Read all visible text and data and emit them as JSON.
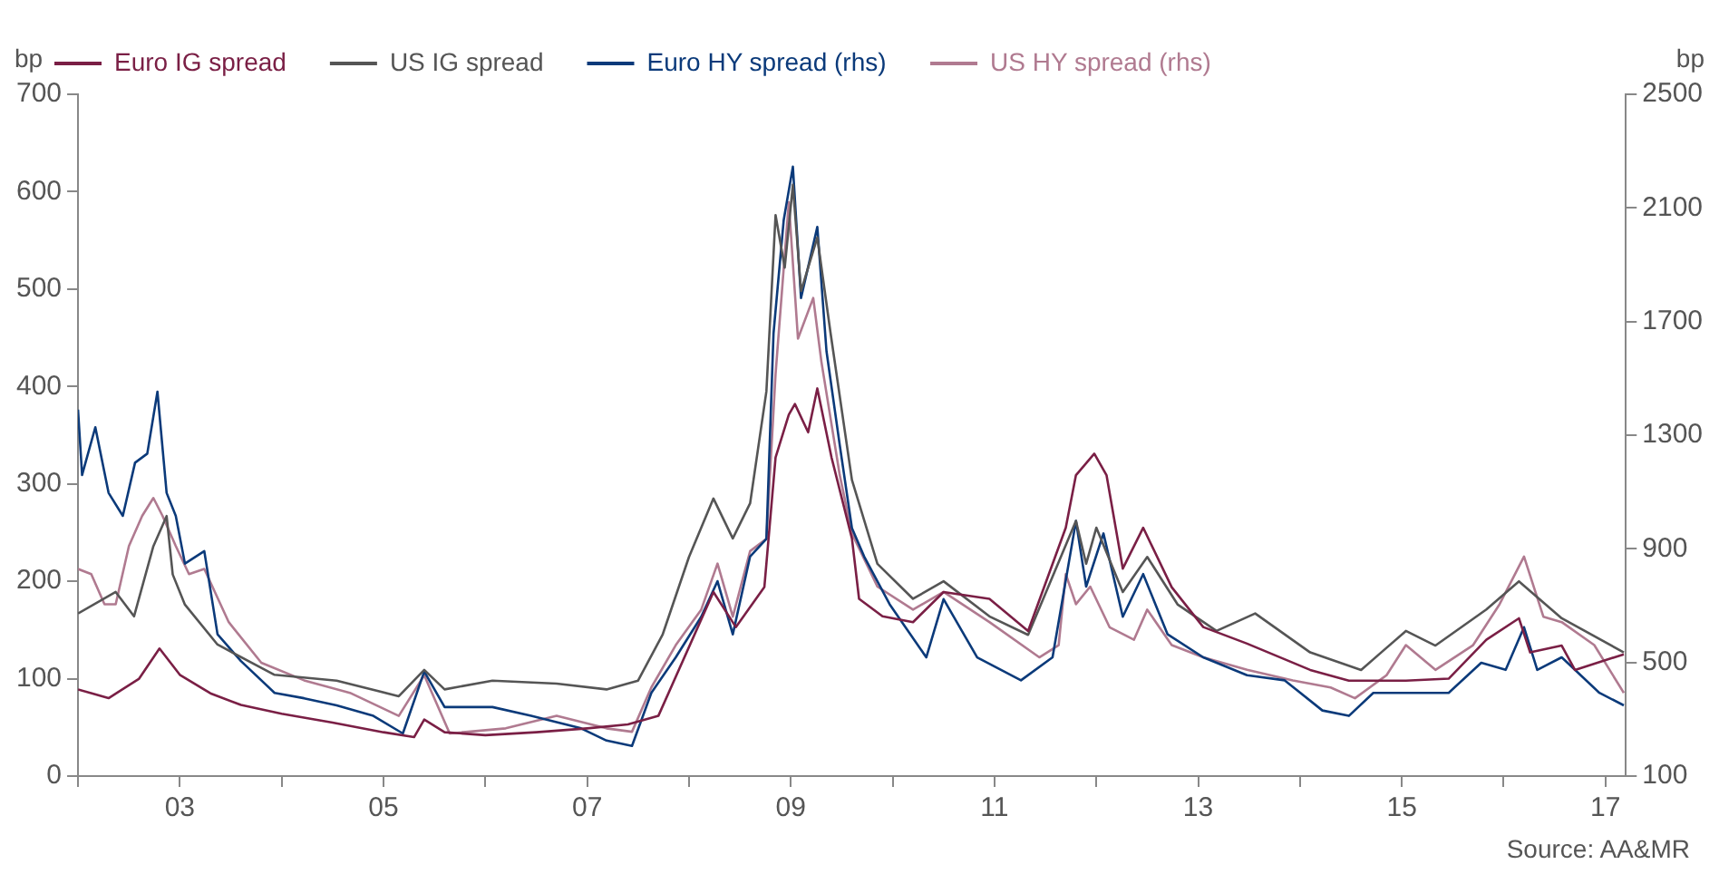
{
  "chart_data": {
    "type": "line",
    "ylabel": "bp",
    "y2label": "bp",
    "legend": "top left",
    "grid": false,
    "marker": "none",
    "line_style": "solid",
    "xlim": [
      2002,
      2017.2
    ],
    "xticks": [
      {
        "value": 2002,
        "label": null
      },
      {
        "value": 2003,
        "label": "03"
      },
      {
        "value": 2004,
        "label": null
      },
      {
        "value": 2005,
        "label": "05"
      },
      {
        "value": 2006,
        "label": null
      },
      {
        "value": 2007,
        "label": "07"
      },
      {
        "value": 2008,
        "label": null
      },
      {
        "value": 2009,
        "label": "09"
      },
      {
        "value": 2010,
        "label": null
      },
      {
        "value": 2011,
        "label": "11"
      },
      {
        "value": 2012,
        "label": null
      },
      {
        "value": 2013,
        "label": "13"
      },
      {
        "value": 2014,
        "label": null
      },
      {
        "value": 2015,
        "label": "15"
      },
      {
        "value": 2016,
        "label": null
      },
      {
        "value": 2017,
        "label": "17"
      }
    ],
    "ylim": [
      0,
      700
    ],
    "yticks": [
      0,
      100,
      200,
      300,
      400,
      500,
      600,
      700
    ],
    "y2lim": [
      100,
      2500
    ],
    "y2ticks": [
      100,
      500,
      900,
      1300,
      1700,
      2100,
      2500
    ],
    "annotations": [
      "Source: AA&MR"
    ],
    "series": [
      {
        "name": "Euro IG spread",
        "color": "#7a1f45",
        "x": [
          2002.0,
          2002.3,
          2002.6,
          2002.8,
          2003.0,
          2003.3,
          2003.6,
          2004.0,
          2004.5,
          2005.0,
          2005.3,
          2005.4,
          2005.6,
          2006.0,
          2006.5,
          2007.0,
          2007.4,
          2007.7,
          2008.24,
          2008.46,
          2008.74,
          2008.85,
          2008.98,
          2009.04,
          2009.17,
          2009.26,
          2009.4,
          2009.6,
          2009.67,
          2009.9,
          2010.2,
          2010.5,
          2010.95,
          2011.33,
          2011.7,
          2011.8,
          2011.98,
          2012.1,
          2012.26,
          2012.46,
          2012.74,
          2013.05,
          2013.48,
          2014.1,
          2014.48,
          2015.04,
          2015.46,
          2015.83,
          2016.15,
          2016.26,
          2016.57,
          2016.7,
          2017.18
        ],
        "values": [
          89,
          80,
          100,
          131,
          104,
          85,
          73,
          64,
          55,
          45,
          40,
          58,
          45,
          42,
          45,
          49,
          53,
          62,
          189,
          153,
          194,
          327,
          371,
          382,
          353,
          398,
          327,
          244,
          182,
          164,
          158,
          189,
          182,
          149,
          255,
          309,
          331,
          309,
          213,
          255,
          194,
          153,
          136,
          109,
          98,
          98,
          100,
          140,
          162,
          127,
          134,
          109,
          125
        ]
      },
      {
        "name": "US IG spread",
        "color": "#555555",
        "x": [
          2002.0,
          2002.37,
          2002.55,
          2002.74,
          2002.87,
          2002.93,
          2003.05,
          2003.37,
          2003.93,
          2004.54,
          2005.15,
          2005.4,
          2005.6,
          2006.07,
          2006.7,
          2007.19,
          2007.5,
          2007.74,
          2008.0,
          2008.24,
          2008.43,
          2008.6,
          2008.76,
          2008.85,
          2008.94,
          2009.02,
          2009.1,
          2009.26,
          2009.39,
          2009.6,
          2009.85,
          2010.2,
          2010.5,
          2010.95,
          2011.33,
          2011.8,
          2011.9,
          2012.0,
          2012.26,
          2012.5,
          2012.8,
          2013.18,
          2013.56,
          2014.1,
          2014.6,
          2015.04,
          2015.33,
          2015.83,
          2016.15,
          2016.57,
          2017.18
        ],
        "values": [
          167,
          189,
          164,
          236,
          267,
          207,
          176,
          135,
          104,
          98,
          82,
          109,
          89,
          98,
          95,
          89,
          98,
          145,
          225,
          285,
          244,
          280,
          395,
          576,
          522,
          607,
          498,
          553,
          455,
          304,
          218,
          182,
          200,
          164,
          145,
          262,
          218,
          255,
          189,
          225,
          176,
          149,
          167,
          127,
          109,
          149,
          134,
          171,
          200,
          162,
          127
        ]
      },
      {
        "name": "Euro HY spread (rhs)",
        "color": "#0b3a7a",
        "axis": "y2",
        "x": [
          2002.0,
          2002.04,
          2002.17,
          2002.3,
          2002.44,
          2002.56,
          2002.68,
          2002.78,
          2002.87,
          2002.96,
          2003.05,
          2003.24,
          2003.37,
          2003.6,
          2003.93,
          2004.22,
          2004.54,
          2004.9,
          2005.19,
          2005.4,
          2005.6,
          2006.07,
          2006.45,
          2006.94,
          2007.19,
          2007.44,
          2007.63,
          2007.87,
          2008.12,
          2008.28,
          2008.43,
          2008.6,
          2008.76,
          2008.83,
          2008.93,
          2009.02,
          2009.1,
          2009.26,
          2009.35,
          2009.48,
          2009.6,
          2009.72,
          2009.97,
          2010.33,
          2010.5,
          2010.83,
          2011.26,
          2011.57,
          2011.8,
          2011.9,
          2012.07,
          2012.26,
          2012.46,
          2012.7,
          2013.05,
          2013.48,
          2013.85,
          2014.22,
          2014.48,
          2014.72,
          2015.04,
          2015.46,
          2015.78,
          2016.02,
          2016.2,
          2016.33,
          2016.57,
          2016.94,
          2017.18
        ],
        "values": [
          1390,
          1160,
          1328,
          1097,
          1016,
          1203,
          1235,
          1453,
          1097,
          1016,
          848,
          892,
          599,
          505,
          393,
          374,
          349,
          312,
          250,
          468,
          343,
          343,
          312,
          268,
          225,
          206,
          393,
          518,
          661,
          786,
          599,
          873,
          935,
          1659,
          2057,
          2245,
          1783,
          2033,
          1596,
          1266,
          973,
          873,
          705,
          518,
          723,
          518,
          437,
          518,
          998,
          767,
          954,
          661,
          811,
          599,
          518,
          455,
          437,
          331,
          312,
          393,
          393,
          393,
          499,
          474,
          624,
          474,
          518,
          393,
          349
        ]
      },
      {
        "name": "US HY spread (rhs)",
        "color": "#b07a90",
        "axis": "y2",
        "x": [
          2002.0,
          2002.13,
          2002.26,
          2002.37,
          2002.5,
          2002.63,
          2002.74,
          2002.83,
          2002.96,
          2003.09,
          2003.24,
          2003.48,
          2003.8,
          2004.22,
          2004.67,
          2005.15,
          2005.4,
          2005.65,
          2006.2,
          2006.7,
          2007.19,
          2007.44,
          2007.63,
          2007.87,
          2008.12,
          2008.28,
          2008.43,
          2008.6,
          2008.76,
          2008.85,
          2008.98,
          2009.07,
          2009.22,
          2009.3,
          2009.48,
          2009.6,
          2009.85,
          2010.2,
          2010.5,
          2010.95,
          2011.44,
          2011.63,
          2011.7,
          2011.8,
          2011.94,
          2012.13,
          2012.37,
          2012.5,
          2012.74,
          2013.05,
          2013.48,
          2013.93,
          2014.3,
          2014.54,
          2014.85,
          2015.04,
          2015.33,
          2015.7,
          2015.96,
          2016.2,
          2016.39,
          2016.57,
          2016.89,
          2017.18
        ],
        "values": [
          829,
          811,
          705,
          705,
          910,
          1016,
          1079,
          1016,
          910,
          811,
          829,
          642,
          499,
          437,
          393,
          312,
          455,
          250,
          268,
          312,
          268,
          256,
          412,
          561,
          686,
          848,
          661,
          892,
          935,
          1515,
          2120,
          1640,
          1783,
          1559,
          1160,
          954,
          767,
          686,
          748,
          642,
          518,
          561,
          811,
          705,
          767,
          624,
          580,
          686,
          561,
          518,
          474,
          437,
          412,
          374,
          455,
          561,
          474,
          561,
          705,
          873,
          661,
          642,
          561,
          393
        ]
      }
    ]
  }
}
